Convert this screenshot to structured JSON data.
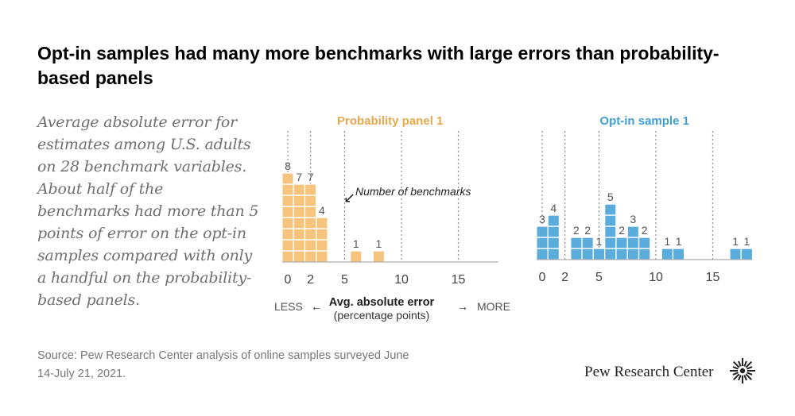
{
  "title": "Opt-in samples had many more benchmarks with large errors than probability-based panels",
  "subtitle": "Average absolute error for estimates among U.S. adults on 28 benchmark variables. About half of the benchmarks had more than 5 points of error on the opt-in samples compared with only a handful on the probability-based panels.",
  "source": "Source: Pew Research Center analysis of online samples surveyed June 14-July 21, 2021.",
  "brand": "Pew Research Center",
  "colors": {
    "panel": "#f7c47e",
    "optin": "#5aacdc",
    "panel_title": "#e8a94e",
    "optin_title": "#3f9fd4"
  },
  "axis": {
    "label": "Avg. absolute error",
    "sublabel": "(percentage points)",
    "less": "LESS",
    "more": "MORE",
    "left_arrow": "←",
    "right_arrow": "→"
  },
  "annotation": {
    "text": "Number of benchmarks",
    "arrow": "↙"
  },
  "chart_data": [
    {
      "type": "bar",
      "title": "Probability panel 1",
      "xlabel": "Avg. absolute error (percentage points)",
      "ylabel": "Number of benchmarks",
      "bin_width": 1,
      "xlim": [
        -0.5,
        18.5
      ],
      "xticks": [
        0,
        2,
        5,
        10,
        15
      ],
      "gridlines": [
        0,
        2,
        5,
        10,
        15
      ],
      "bins": [
        {
          "x": 0,
          "count": 8,
          "label": "8"
        },
        {
          "x": 1,
          "count": 7,
          "label": "7"
        },
        {
          "x": 2,
          "count": 7,
          "label": "7"
        },
        {
          "x": 3,
          "count": 4,
          "label": "4"
        },
        {
          "x": 6,
          "count": 1,
          "label": "1"
        },
        {
          "x": 8,
          "count": 1,
          "label": "1"
        }
      ]
    },
    {
      "type": "bar",
      "title": "Opt-in sample 1",
      "xlabel": "Avg. absolute error (percentage points)",
      "ylabel": "Number of benchmarks",
      "bin_width": 1,
      "xlim": [
        -0.5,
        18.5
      ],
      "xticks": [
        0,
        2,
        5,
        10,
        15
      ],
      "gridlines": [
        0,
        2,
        5,
        10,
        15
      ],
      "bins": [
        {
          "x": 0,
          "count": 3,
          "label": "3"
        },
        {
          "x": 1,
          "count": 4,
          "label": "4"
        },
        {
          "x": 3,
          "count": 2,
          "label": "2"
        },
        {
          "x": 4,
          "count": 2,
          "label": "2"
        },
        {
          "x": 5,
          "count": 1,
          "label": "1"
        },
        {
          "x": 6,
          "count": 5,
          "label": "5"
        },
        {
          "x": 7,
          "count": 2,
          "label": "2"
        },
        {
          "x": 8,
          "count": 3,
          "label": "3"
        },
        {
          "x": 9,
          "count": 2,
          "label": "2"
        },
        {
          "x": 11,
          "count": 1,
          "label": "1"
        },
        {
          "x": 12,
          "count": 1,
          "label": "1"
        },
        {
          "x": 17,
          "count": 1,
          "label": "1"
        },
        {
          "x": 18,
          "count": 1,
          "label": "1"
        }
      ]
    }
  ]
}
